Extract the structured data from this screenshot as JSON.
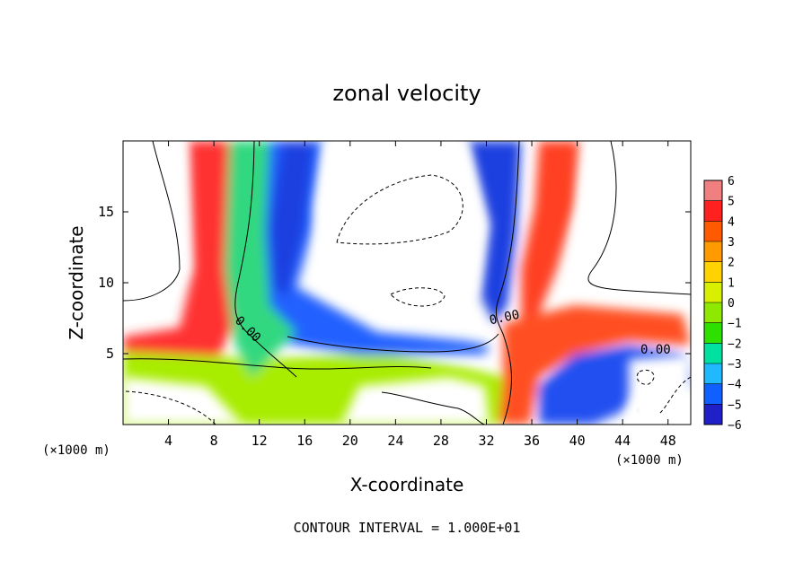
{
  "chart_data": {
    "type": "heatmap",
    "title": "zonal velocity",
    "xlabel": "X-coordinate",
    "ylabel": "Z-coordinate",
    "x_unit_left": "(×1000 m)",
    "x_unit_right": "(×1000 m)",
    "xlim": [
      0,
      50
    ],
    "ylim": [
      0,
      20
    ],
    "x_ticks": [
      4,
      8,
      12,
      16,
      20,
      24,
      28,
      32,
      36,
      40,
      44,
      48
    ],
    "y_ticks": [
      5,
      10,
      15
    ],
    "colorbar": {
      "levels": [
        6,
        5,
        4,
        3,
        2,
        1,
        0,
        -1,
        -2,
        -3,
        -4,
        -5,
        -6
      ],
      "colors": [
        "#f08080",
        "#ff2020",
        "#ff5a00",
        "#ff9a00",
        "#ffd200",
        "#d8f000",
        "#8ee800",
        "#2ee000",
        "#00e0a0",
        "#20b8ff",
        "#1060ff",
        "#2020c8",
        "#7010b0"
      ]
    },
    "contour_labels": [
      "0.00",
      "0.00",
      "0.00"
    ],
    "footer": "CONTOUR INTERVAL = 1.000E+01"
  }
}
